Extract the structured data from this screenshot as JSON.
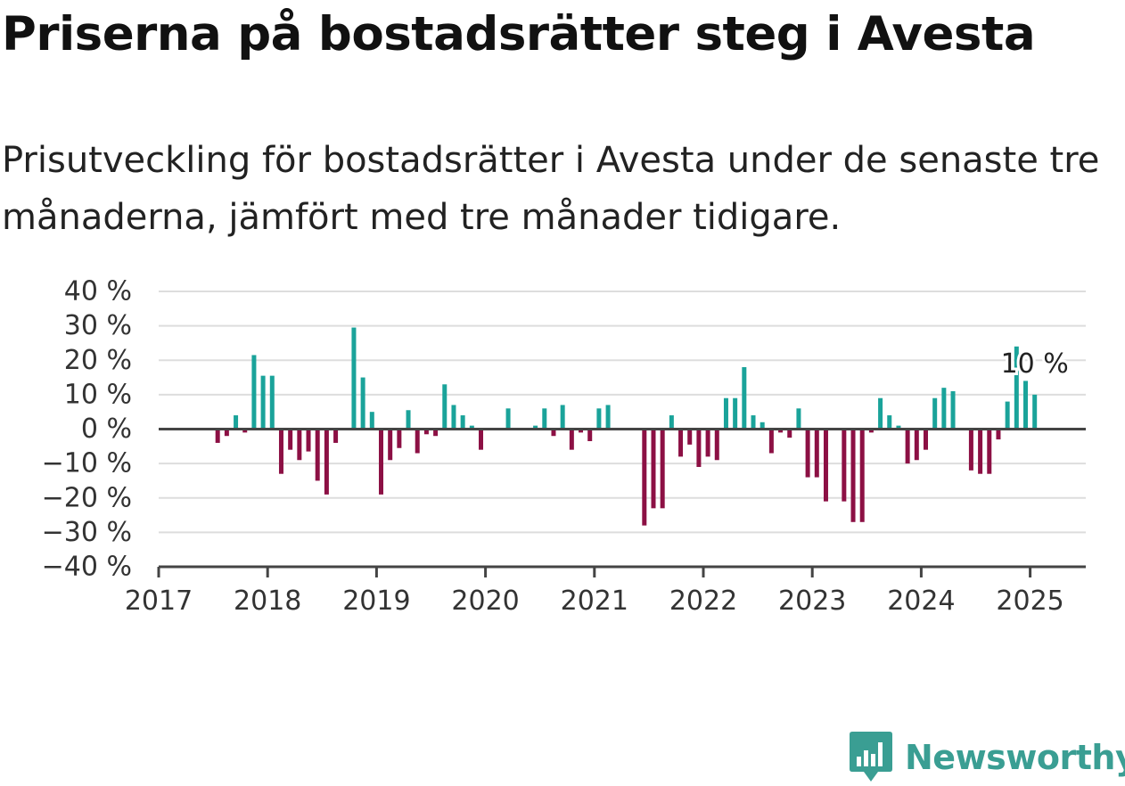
{
  "header": {
    "title": "Priserna på bostadsrätter steg i Avesta",
    "subtitle": "Prisutveckling för bostadsrätter i Avesta under de senaste tre månaderna, jämfört med tre månader tidigare."
  },
  "brand": {
    "name": "Newsworthy",
    "logo_icon": "newsworthy-logo-icon"
  },
  "colors": {
    "positive": "#1aa39a",
    "negative": "#8c1044",
    "grid": "#dddddd",
    "axis": "#444444",
    "text": "#333333"
  },
  "chart_data": {
    "type": "bar",
    "title": "Priserna på bostadsrätter steg i Avesta",
    "subtitle": "Prisutveckling för bostadsrätter i Avesta under de senaste tre månaderna, jämfört med tre månader tidigare.",
    "xlabel": "",
    "ylabel": "",
    "ylim": [
      -40,
      40
    ],
    "yticks": [
      40,
      30,
      20,
      10,
      0,
      -10,
      -20,
      -30,
      -40
    ],
    "ytick_labels": [
      "40 %",
      "30 %",
      "20 %",
      "10 %",
      "0 %",
      "−10 %",
      "−20 %",
      "−30 %",
      "−40 %"
    ],
    "x_ticks": [
      "2017",
      "2018",
      "2019",
      "2020",
      "2021",
      "2022",
      "2023",
      "2024",
      "2025"
    ],
    "x_start": "2017-01",
    "grid": true,
    "annotation": {
      "text": "10 %",
      "month": "2025-01",
      "value": 10
    },
    "series": [
      {
        "categories": [
          "2017-01",
          "2017-02",
          "2017-03",
          "2017-04",
          "2017-05",
          "2017-06",
          "2017-07",
          "2017-08",
          "2017-09",
          "2017-10",
          "2017-11",
          "2017-12",
          "2018-01",
          "2018-02",
          "2018-03",
          "2018-04",
          "2018-05",
          "2018-06",
          "2018-07",
          "2018-08",
          "2018-09",
          "2018-10",
          "2018-11",
          "2018-12",
          "2019-01",
          "2019-02",
          "2019-03",
          "2019-04",
          "2019-05",
          "2019-06",
          "2019-07",
          "2019-08",
          "2019-09",
          "2019-10",
          "2019-11",
          "2019-12",
          "2020-01",
          "2020-02",
          "2020-03",
          "2020-04",
          "2020-05",
          "2020-06",
          "2020-07",
          "2020-08",
          "2020-09",
          "2020-10",
          "2020-11",
          "2020-12",
          "2021-01",
          "2021-02",
          "2021-03",
          "2021-04",
          "2021-05",
          "2021-06",
          "2021-07",
          "2021-08",
          "2021-09",
          "2021-10",
          "2021-11",
          "2021-12",
          "2022-01",
          "2022-02",
          "2022-03",
          "2022-04",
          "2022-05",
          "2022-06",
          "2022-07",
          "2022-08",
          "2022-09",
          "2022-10",
          "2022-11",
          "2022-12",
          "2023-01",
          "2023-02",
          "2023-03",
          "2023-04",
          "2023-05",
          "2023-06",
          "2023-07",
          "2023-08",
          "2023-09",
          "2023-10",
          "2023-11",
          "2023-12",
          "2024-01",
          "2024-02",
          "2024-03",
          "2024-04",
          "2024-05",
          "2024-06",
          "2024-07",
          "2024-08",
          "2024-09",
          "2024-10",
          "2024-11",
          "2024-12",
          "2025-01"
        ],
        "values": [
          null,
          null,
          null,
          null,
          null,
          null,
          -4,
          -2,
          4,
          -1,
          21.5,
          15.5,
          15.5,
          -13,
          -6,
          -9,
          -6.5,
          -15,
          -19,
          -4,
          null,
          29.5,
          15,
          5,
          -19,
          -9,
          -5.5,
          5.5,
          -7,
          -1.5,
          -2,
          13,
          7,
          4,
          1,
          -6,
          null,
          null,
          6,
          null,
          null,
          1,
          6,
          -2,
          7,
          -6,
          -1,
          -3.5,
          6,
          7,
          null,
          null,
          null,
          -28,
          -23,
          -23,
          4,
          -8,
          -4.5,
          -11,
          -8,
          -9,
          9,
          9,
          18,
          4,
          2,
          -7,
          -1,
          -2.5,
          6,
          -14,
          -14,
          -21,
          null,
          -21,
          -27,
          -27,
          -1,
          9,
          4,
          1,
          -10,
          -9,
          -6,
          9,
          12,
          11,
          null,
          -12,
          -13,
          -13,
          -3,
          8,
          24,
          14,
          10
        ]
      }
    ]
  }
}
